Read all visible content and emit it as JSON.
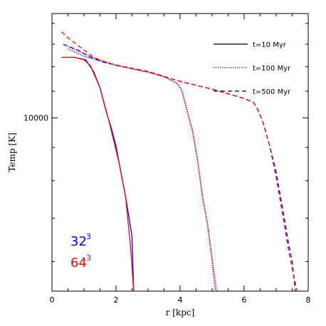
{
  "chart_data": {
    "type": "line",
    "xlabel": "r [kpc]",
    "ylabel": "Temp [K]",
    "xlim": [
      0,
      8
    ],
    "ylim": [
      5400,
      14500
    ],
    "yscale": "log",
    "xticks": [
      0,
      2,
      4,
      6,
      8
    ],
    "yticks": [
      10000
    ],
    "grid": false,
    "legend": {
      "placement": "top-right",
      "entries": [
        {
          "label": "t=10 Myr",
          "linestyle": "solid"
        },
        {
          "label": "t=100 Myr",
          "linestyle": "dotted"
        },
        {
          "label": "t=500 Myr",
          "linestyle": "dashed"
        }
      ]
    },
    "resolution_labels": [
      {
        "base": "32",
        "exp": "3",
        "color": "#0000ff"
      },
      {
        "base": "64",
        "exp": "3",
        "color": "#ff0000"
      }
    ],
    "series": [
      {
        "time": "t=10 Myr",
        "resolution": "32^3",
        "color": "#0000ff",
        "linestyle": "solid",
        "x": [
          0.3,
          0.7,
          1.05,
          1.3,
          1.5,
          1.7,
          1.85,
          2.0,
          2.15,
          2.3,
          2.4,
          2.5,
          2.55
        ],
        "y": [
          12410,
          12410,
          12300,
          11800,
          11140,
          10200,
          9660,
          9050,
          8250,
          7550,
          7050,
          6550,
          5400
        ]
      },
      {
        "time": "t=10 Myr",
        "resolution": "64^3",
        "color": "#ff0000",
        "linestyle": "solid",
        "x": [
          0.3,
          0.7,
          1.0,
          1.2,
          1.5,
          1.8,
          2.1,
          2.3,
          2.45,
          2.55
        ],
        "y": [
          12410,
          12410,
          12300,
          12050,
          11140,
          9800,
          8500,
          7550,
          6350,
          5400
        ]
      },
      {
        "time": "t=100 Myr",
        "resolution": "32^3",
        "color": "#0000ff",
        "linestyle": "dotted",
        "x": [
          0.5,
          1.0,
          1.5,
          2.0,
          2.5,
          3.0,
          3.5,
          3.9,
          4.05,
          4.2,
          4.4,
          4.55,
          4.7,
          4.85,
          5.0,
          5.1
        ],
        "y": [
          12780,
          12460,
          12260,
          12060,
          11910,
          11770,
          11580,
          11320,
          11050,
          10350,
          9500,
          8570,
          7550,
          6880,
          6050,
          5400
        ]
      },
      {
        "time": "t=100 Myr",
        "resolution": "64^3",
        "color": "#ff0000",
        "linestyle": "dotted",
        "x": [
          0.45,
          1.0,
          1.5,
          2.0,
          2.5,
          3.0,
          3.5,
          3.9,
          4.05,
          4.2,
          4.4,
          4.55,
          4.7,
          4.85,
          5.0,
          5.15
        ],
        "y": [
          12930,
          12570,
          12290,
          12060,
          11910,
          11770,
          11580,
          11320,
          11050,
          10350,
          9500,
          8570,
          7550,
          6880,
          6050,
          5400
        ]
      },
      {
        "time": "t=500 Myr",
        "resolution": "32^3",
        "color": "#0000ff",
        "linestyle": "dashed",
        "x": [
          0.35,
          0.8,
          1.2,
          1.6,
          2.0,
          3.0,
          4.0,
          5.0,
          6.0,
          6.3,
          6.45,
          6.6,
          6.8,
          7.0,
          7.2,
          7.4,
          7.5,
          7.6
        ],
        "y": [
          12990,
          12740,
          12410,
          12200,
          12070,
          11800,
          11390,
          11080,
          10720,
          10560,
          10250,
          9800,
          9050,
          8250,
          7250,
          6350,
          6000,
          5400
        ]
      },
      {
        "time": "t=500 Myr",
        "resolution": "64^3",
        "color": "#ff0000",
        "linestyle": "dashed",
        "x": [
          0.3,
          0.6,
          1.0,
          1.3,
          1.6,
          2.0,
          3.0,
          4.0,
          5.0,
          6.0,
          6.3,
          6.45,
          6.6,
          6.8,
          7.0,
          7.2,
          7.4,
          7.55,
          7.65
        ],
        "y": [
          13580,
          13180,
          12740,
          12410,
          12230,
          12070,
          11800,
          11390,
          11080,
          10720,
          10560,
          10250,
          9800,
          9050,
          8100,
          7100,
          6200,
          5700,
          5400
        ]
      }
    ]
  }
}
